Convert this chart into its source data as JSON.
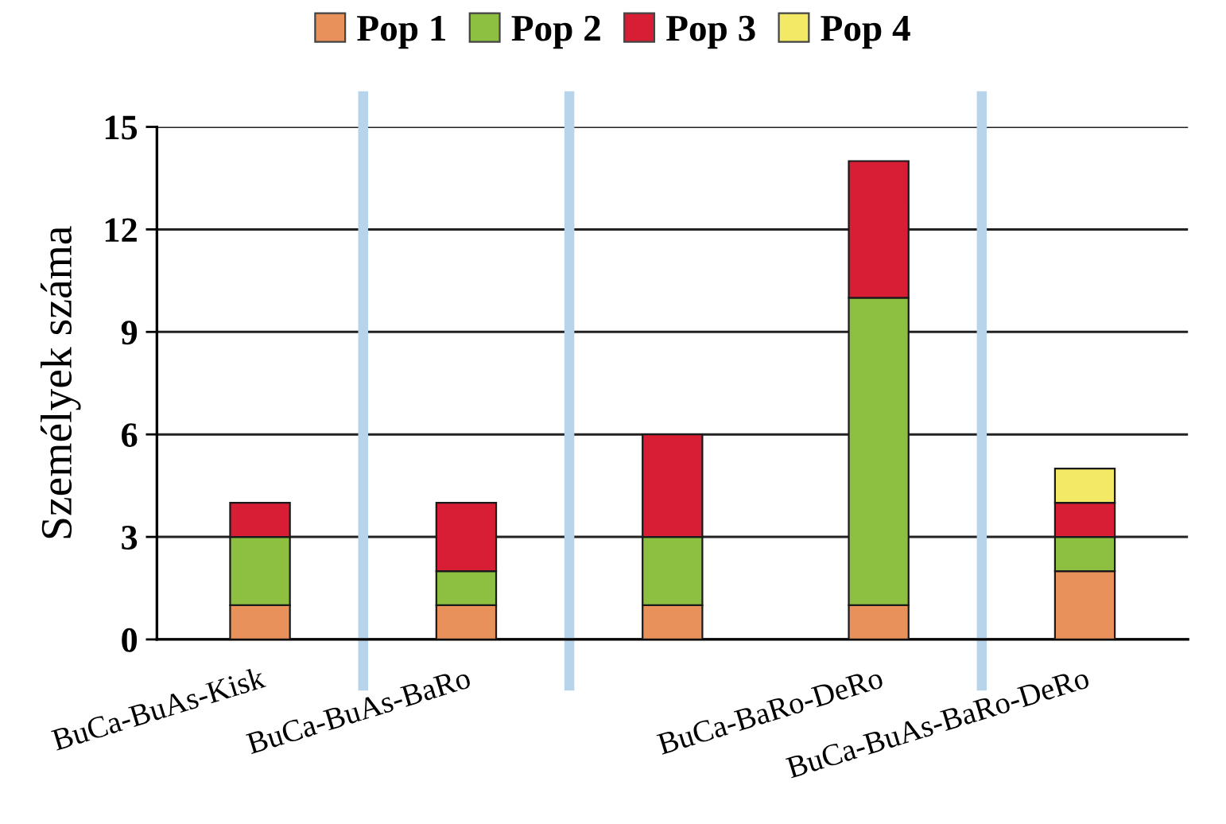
{
  "chart_data": {
    "type": "bar",
    "stacked": true,
    "ylabel": "Személyek száma",
    "categories": [
      "BuCa-BuAs-Kisk",
      "BuCa-BuAs-BaRo",
      null,
      "BuCa-BaRo-DeRo",
      "BuCa-BuAs-BaRo-DeRo"
    ],
    "series": [
      {
        "name": "Pop 1",
        "color": "#e8915a",
        "values": [
          1,
          1,
          1,
          1,
          2
        ]
      },
      {
        "name": "Pop 2",
        "color": "#8dbf40",
        "values": [
          2,
          1,
          2,
          9,
          1
        ]
      },
      {
        "name": "Pop 3",
        "color": "#d81e34",
        "values": [
          1,
          2,
          3,
          4,
          1
        ]
      },
      {
        "name": "Pop 4",
        "color": "#f3e965",
        "values": [
          null,
          null,
          null,
          null,
          1
        ]
      }
    ],
    "ylim": [
      0,
      15
    ],
    "yticks": [
      0,
      3,
      6,
      9,
      12,
      15
    ],
    "grid": "y",
    "legend": "top"
  }
}
